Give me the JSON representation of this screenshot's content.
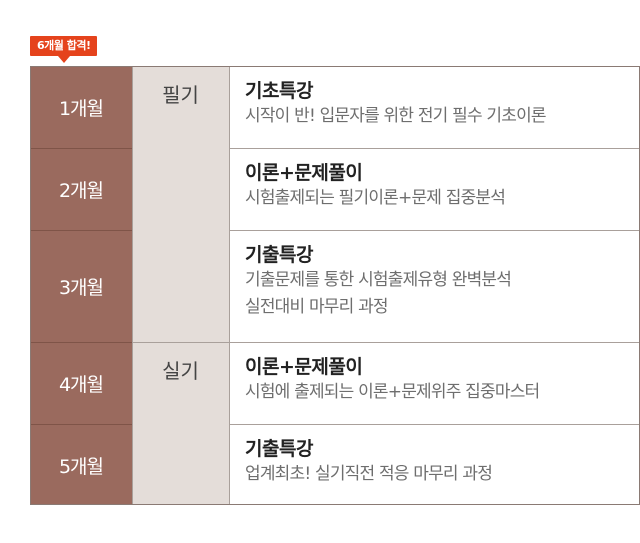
{
  "badge": {
    "label": "6개월 합격!"
  },
  "rows": [
    {
      "month": "1개월",
      "title": "기초특강",
      "desc1": "시작이 반! 입문자를 위한 전기 필수 기초이론",
      "desc2": ""
    },
    {
      "month": "2개월",
      "title": "이론+문제풀이",
      "desc1": "시험출제되는 필기이론+문제 집중분석",
      "desc2": ""
    },
    {
      "month": "3개월",
      "title": "기출특강",
      "desc1": "기출문제를 통한 시험출제유형 완벽분석",
      "desc2": "실전대비 마무리 과정"
    },
    {
      "month": "4개월",
      "title": "이론+문제풀이",
      "desc1": "시험에 출제되는 이론+문제위주 집중마스터",
      "desc2": ""
    },
    {
      "month": "5개월",
      "title": "기출특강",
      "desc1": "업계최초! 실기직전 적응 마무리 과정",
      "desc2": ""
    }
  ],
  "groups": [
    {
      "label": "필기"
    },
    {
      "label": "실기"
    }
  ],
  "colors": {
    "badge": "#e5431c",
    "month_bg": "#9a6a5e",
    "type_bg": "#e4ddd9"
  }
}
